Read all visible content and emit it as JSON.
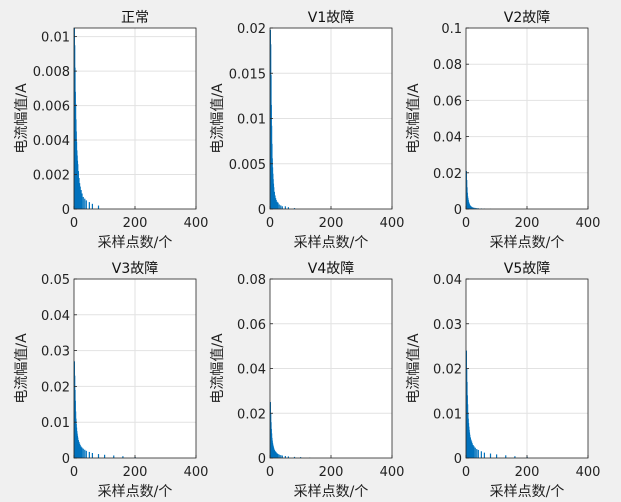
{
  "chart_data": [
    {
      "type": "bar",
      "title": "正常",
      "xlabel": "采样点数/个",
      "ylabel": "电流幅值/A",
      "xlim": [
        0,
        400
      ],
      "ylim": [
        0,
        0.0105
      ],
      "xticks": [
        0,
        200,
        400
      ],
      "xtick_labels": [
        "0",
        "200",
        "400"
      ],
      "yticks": [
        0,
        0.002,
        0.004,
        0.006,
        0.008,
        0.01
      ],
      "ytick_labels": [
        "0",
        "0.002",
        "0.004",
        "0.006",
        "0.008",
        "0.01"
      ],
      "grid": true,
      "x": [
        1,
        2,
        3,
        4,
        5,
        6,
        7,
        8,
        9,
        10,
        11,
        12,
        14,
        16,
        18,
        20,
        23,
        26,
        30,
        35,
        40,
        50,
        60,
        80
      ],
      "values": [
        0.0105,
        0.0095,
        0.0082,
        0.0068,
        0.0061,
        0.0052,
        0.0045,
        0.0039,
        0.0034,
        0.0031,
        0.0028,
        0.0026,
        0.0022,
        0.0018,
        0.0015,
        0.0013,
        0.0011,
        0.0009,
        0.0007,
        0.0006,
        0.0005,
        0.0004,
        0.0003,
        0.0002
      ]
    },
    {
      "type": "bar",
      "title": "V1故障",
      "xlabel": "采样点数/个",
      "ylabel": "电流幅值/A",
      "xlim": [
        0,
        400
      ],
      "ylim": [
        0,
        0.02
      ],
      "xticks": [
        0,
        200,
        400
      ],
      "xtick_labels": [
        "0",
        "200",
        "400"
      ],
      "yticks": [
        0,
        0.005,
        0.01,
        0.015,
        0.02
      ],
      "ytick_labels": [
        "0",
        "0.005",
        "0.01",
        "0.015",
        "0.02"
      ],
      "grid": true,
      "x": [
        1,
        2,
        3,
        4,
        5,
        6,
        7,
        8,
        9,
        10,
        11,
        12,
        14,
        16,
        18,
        20,
        23,
        26,
        30,
        35,
        40,
        50,
        60,
        80
      ],
      "values": [
        0.0198,
        0.0182,
        0.0148,
        0.0115,
        0.0092,
        0.0072,
        0.0056,
        0.0046,
        0.0039,
        0.0033,
        0.0028,
        0.0024,
        0.0019,
        0.0015,
        0.0012,
        0.001,
        0.0008,
        0.0007,
        0.0005,
        0.0004,
        0.0003,
        0.0003,
        0.0002,
        0.0001
      ]
    },
    {
      "type": "bar",
      "title": "V2故障",
      "xlabel": "采样点数/个",
      "ylabel": "电流幅值/A",
      "xlim": [
        0,
        400
      ],
      "ylim": [
        0,
        0.1
      ],
      "xticks": [
        0,
        200,
        400
      ],
      "xtick_labels": [
        "0",
        "200",
        "400"
      ],
      "yticks": [
        0,
        0.02,
        0.04,
        0.06,
        0.08,
        0.1
      ],
      "ytick_labels": [
        "0",
        "0.02",
        "0.04",
        "0.06",
        "0.08",
        "0.1"
      ],
      "grid": true,
      "x": [
        1,
        2,
        3,
        4,
        5,
        6,
        7,
        8,
        9,
        10,
        11,
        12,
        14,
        16,
        18,
        20,
        23,
        26,
        30,
        35,
        40,
        50,
        60,
        80
      ],
      "values": [
        0.021,
        0.016,
        0.012,
        0.009,
        0.007,
        0.006,
        0.005,
        0.004,
        0.0035,
        0.003,
        0.0026,
        0.0022,
        0.0018,
        0.0015,
        0.0012,
        0.001,
        0.0008,
        0.0007,
        0.0006,
        0.0005,
        0.0004,
        0.0003,
        0.0002,
        0.0001
      ]
    },
    {
      "type": "bar",
      "title": "V3故障",
      "xlabel": "采样点数/个",
      "ylabel": "电流幅值/A",
      "xlim": [
        0,
        400
      ],
      "ylim": [
        0,
        0.05
      ],
      "xticks": [
        0,
        200,
        400
      ],
      "xtick_labels": [
        "0",
        "200",
        "400"
      ],
      "yticks": [
        0,
        0.01,
        0.02,
        0.03,
        0.04,
        0.05
      ],
      "ytick_labels": [
        "0",
        "0.01",
        "0.02",
        "0.03",
        "0.04",
        "0.05"
      ],
      "grid": true,
      "x": [
        1,
        2,
        3,
        4,
        5,
        6,
        7,
        8,
        9,
        10,
        11,
        12,
        14,
        16,
        18,
        20,
        23,
        26,
        30,
        35,
        40,
        50,
        60,
        80,
        100,
        130,
        160,
        200
      ],
      "values": [
        0.027,
        0.023,
        0.019,
        0.016,
        0.013,
        0.011,
        0.0095,
        0.0085,
        0.0075,
        0.0068,
        0.0062,
        0.0057,
        0.005,
        0.0045,
        0.004,
        0.0036,
        0.0032,
        0.0029,
        0.0026,
        0.0023,
        0.002,
        0.0017,
        0.0014,
        0.0011,
        0.0009,
        0.0007,
        0.0005,
        0.0003
      ]
    },
    {
      "type": "bar",
      "title": "V4故障",
      "xlabel": "采样点数/个",
      "ylabel": "电流幅值/A",
      "xlim": [
        0,
        400
      ],
      "ylim": [
        0,
        0.08
      ],
      "xticks": [
        0,
        200,
        400
      ],
      "xtick_labels": [
        "0",
        "200",
        "400"
      ],
      "yticks": [
        0,
        0.02,
        0.04,
        0.06,
        0.08
      ],
      "ytick_labels": [
        "0",
        "0.02",
        "0.04",
        "0.06",
        "0.08"
      ],
      "grid": true,
      "x": [
        1,
        2,
        3,
        4,
        5,
        6,
        7,
        8,
        9,
        10,
        11,
        12,
        14,
        16,
        18,
        20,
        23,
        26,
        30,
        35,
        40,
        50,
        60,
        80,
        100,
        130
      ],
      "values": [
        0.025,
        0.02,
        0.016,
        0.013,
        0.011,
        0.009,
        0.0078,
        0.0068,
        0.006,
        0.0054,
        0.0048,
        0.0043,
        0.0037,
        0.0032,
        0.0028,
        0.0025,
        0.0021,
        0.0018,
        0.0015,
        0.0013,
        0.0011,
        0.0009,
        0.0007,
        0.0005,
        0.0004,
        0.0002
      ]
    },
    {
      "type": "bar",
      "title": "V5故障",
      "xlabel": "采样点数/个",
      "ylabel": "电流幅值/A",
      "xlim": [
        0,
        400
      ],
      "ylim": [
        0,
        0.04
      ],
      "xticks": [
        0,
        200,
        400
      ],
      "xtick_labels": [
        "0",
        "200",
        "400"
      ],
      "yticks": [
        0,
        0.01,
        0.02,
        0.03,
        0.04
      ],
      "ytick_labels": [
        "0",
        "0.01",
        "0.02",
        "0.03",
        "0.04"
      ],
      "grid": true,
      "x": [
        1,
        2,
        3,
        4,
        5,
        6,
        7,
        8,
        9,
        10,
        11,
        12,
        14,
        16,
        18,
        20,
        23,
        26,
        30,
        35,
        40,
        50,
        60,
        80,
        100,
        130,
        160,
        200
      ],
      "values": [
        0.024,
        0.02,
        0.017,
        0.014,
        0.012,
        0.01,
        0.0088,
        0.0078,
        0.007,
        0.0063,
        0.0057,
        0.0052,
        0.0046,
        0.0041,
        0.0037,
        0.0033,
        0.0029,
        0.0026,
        0.0023,
        0.002,
        0.0018,
        0.0015,
        0.0012,
        0.001,
        0.0008,
        0.0006,
        0.0004,
        0.0003
      ]
    }
  ]
}
